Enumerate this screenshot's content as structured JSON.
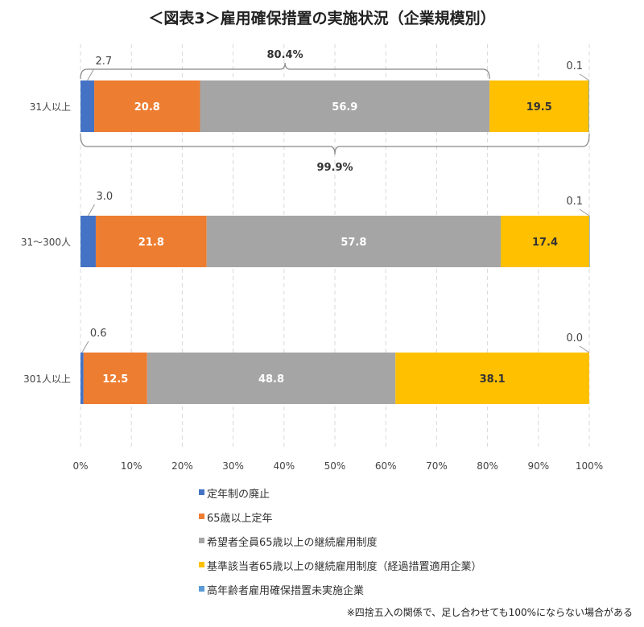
{
  "chart_data": {
    "type": "bar",
    "orientation": "horizontal",
    "stacked": true,
    "title": "＜図表3＞雇用確保措置の実施状況（企業規模別）",
    "categories": [
      "31人以上",
      "31～300人",
      "301人以上"
    ],
    "xlim": [
      0,
      100
    ],
    "x_ticks": [
      "0%",
      "10%",
      "20%",
      "30%",
      "40%",
      "50%",
      "60%",
      "70%",
      "80%",
      "90%",
      "100%"
    ],
    "grid": "vertical dashed",
    "legend_position": "bottom",
    "series": [
      {
        "name": "定年制の廃止",
        "color": "#4472C4",
        "values": [
          2.7,
          3.0,
          0.6
        ],
        "labels": [
          "2.7",
          "3.0",
          "0.6"
        ]
      },
      {
        "name": "65歳以上定年",
        "color": "#ED7D31",
        "values": [
          20.8,
          21.8,
          12.5
        ],
        "labels": [
          "20.8",
          "21.8",
          "12.5"
        ]
      },
      {
        "name": "希望者全員65歳以上の継続雇用制度",
        "color": "#A5A5A5",
        "values": [
          56.9,
          57.8,
          48.8
        ],
        "labels": [
          "56.9",
          "57.8",
          "48.8"
        ]
      },
      {
        "name": "基準該当者65歳以上の継続雇用制度（経過措置適用企業）",
        "color": "#FFC000",
        "values": [
          19.5,
          17.4,
          38.1
        ],
        "labels": [
          "19.5",
          "17.4",
          "38.1"
        ]
      },
      {
        "name": "高年齢者雇用確保措置未実施企業",
        "color": "#5B9BD5",
        "values": [
          0.1,
          0.1,
          0.0
        ],
        "labels": [
          "0.1",
          "0.1",
          "0.0"
        ]
      }
    ],
    "annotations": [
      {
        "category": "31人以上",
        "text": "80.4%",
        "span": [
          0,
          80.4
        ],
        "position": "above"
      },
      {
        "category": "31人以上",
        "text": "99.9%",
        "span": [
          0,
          100
        ],
        "position": "below"
      }
    ],
    "note": "※四捨五入の関係で、足し合わせても100%にならない場合がある"
  }
}
